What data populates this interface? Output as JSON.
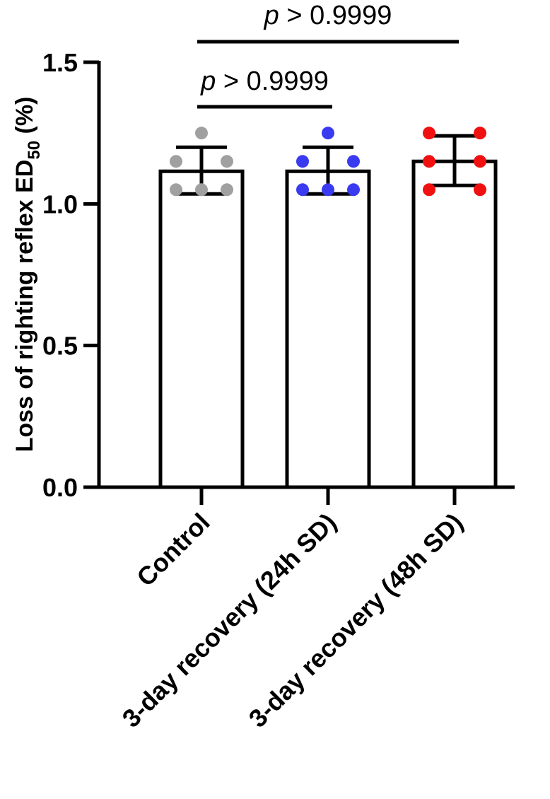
{
  "chart_data": {
    "type": "bar",
    "ylabel_main": "Loss of righting reflex ED",
    "ylabel_sub": "50",
    "ylabel_unit": " (%)",
    "xlabel": "",
    "ylim": [
      0,
      1.5
    ],
    "y_ticks": [
      "0.0",
      "0.5",
      "1.0",
      "1.5"
    ],
    "categories": [
      "Control",
      "3-day recovery (24h SD)",
      "3-day recovery (48h SD)"
    ],
    "means": [
      1.115,
      1.115,
      1.15
    ],
    "error_upper": [
      1.2,
      1.2,
      1.24
    ],
    "error_lower": [
      1.035,
      1.035,
      1.065
    ],
    "colors": [
      "#a0a0a0",
      "#3a3af0",
      "#f01010"
    ],
    "points": [
      [
        1.25,
        1.15,
        1.15,
        1.05,
        1.05,
        1.05
      ],
      [
        1.25,
        1.15,
        1.15,
        1.05,
        1.05,
        1.05
      ],
      [
        1.25,
        1.25,
        1.15,
        1.15,
        1.05,
        1.05
      ]
    ],
    "comparisons": [
      {
        "from": "Control",
        "to": "3-day recovery (24h SD)",
        "p_italic": "p",
        "p_rest": " > 0.9999"
      },
      {
        "from": "Control",
        "to": "3-day recovery (48h SD)",
        "p_italic": "p",
        "p_rest": " > 0.9999"
      }
    ],
    "grid": false,
    "legend": "none"
  }
}
